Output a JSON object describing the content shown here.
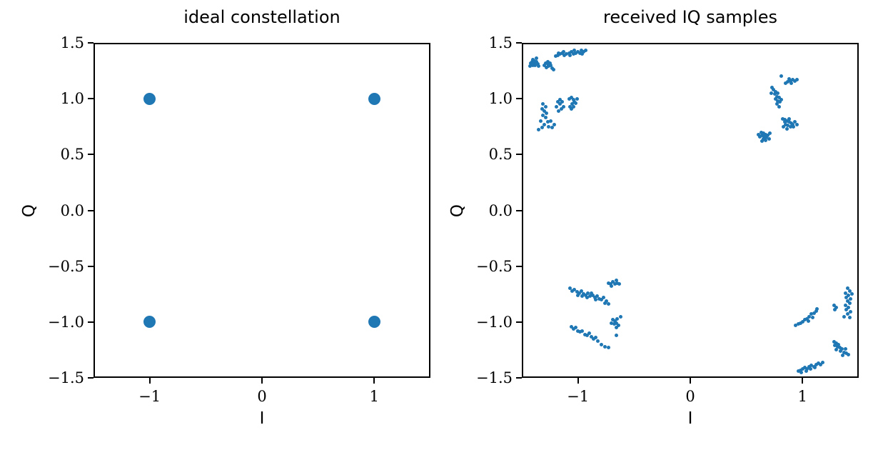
{
  "figure": {
    "background": "#ffffff",
    "axis_color": "#000000",
    "text_color": "#000000"
  },
  "chart_data": [
    {
      "type": "scatter",
      "title": "ideal constellation",
      "xlabel": "I",
      "ylabel": "Q",
      "xlim": [
        -1.5,
        1.5
      ],
      "ylim": [
        -1.5,
        1.5
      ],
      "xticks": [
        -1,
        0,
        1
      ],
      "xtick_labels": [
        "−1",
        "0",
        "1"
      ],
      "yticks": [
        1.5,
        1.0,
        0.5,
        0.0,
        -0.5,
        -1.0,
        -1.5
      ],
      "ytick_labels": [
        "1.5",
        "1.0",
        "0.5",
        "0.0",
        "−0.5",
        "−1.0",
        "−1.5"
      ],
      "grid": false,
      "legend": "none",
      "marker_color": "#1f77b4",
      "marker_px": 17,
      "points": [
        [
          -1,
          1
        ],
        [
          1,
          1
        ],
        [
          -1,
          -1
        ],
        [
          1,
          -1
        ]
      ]
    },
    {
      "type": "scatter",
      "title": "received IQ samples",
      "xlabel": "I",
      "ylabel": "Q",
      "xlim": [
        -1.5,
        1.5
      ],
      "ylim": [
        -1.5,
        1.5
      ],
      "xticks": [
        -1,
        0,
        1
      ],
      "xtick_labels": [
        "−1",
        "0",
        "1"
      ],
      "yticks": [
        1.5,
        1.0,
        0.5,
        0.0,
        -0.5,
        -1.0,
        -1.5
      ],
      "ytick_labels": [
        "1.5",
        "1.0",
        "0.5",
        "0.0",
        "−0.5",
        "−1.0",
        "−1.5"
      ],
      "grid": false,
      "legend": "none",
      "marker_color": "#1f77b4",
      "marker_px": 5,
      "points": [
        [
          -1.39,
          1.32
        ],
        [
          -1.37,
          1.33
        ],
        [
          -1.41,
          1.33
        ],
        [
          -1.38,
          1.3
        ],
        [
          -1.4,
          1.3
        ],
        [
          -1.36,
          1.31
        ],
        [
          -1.42,
          1.32
        ],
        [
          -1.39,
          1.34
        ],
        [
          -1.37,
          1.36
        ],
        [
          -1.43,
          1.29
        ],
        [
          -1.35,
          1.29
        ],
        [
          -1.4,
          1.35
        ],
        [
          -1.27,
          1.31
        ],
        [
          -1.25,
          1.32
        ],
        [
          -1.29,
          1.32
        ],
        [
          -1.26,
          1.29
        ],
        [
          -1.28,
          1.28
        ],
        [
          -1.24,
          1.3
        ],
        [
          -1.3,
          1.3
        ],
        [
          -1.27,
          1.33
        ],
        [
          -1.23,
          1.27
        ],
        [
          -1.22,
          1.26
        ],
        [
          -1.2,
          1.38
        ],
        [
          -1.18,
          1.39
        ],
        [
          -1.16,
          1.4
        ],
        [
          -1.14,
          1.41
        ],
        [
          -1.12,
          1.39
        ],
        [
          -1.1,
          1.4
        ],
        [
          -1.08,
          1.41
        ],
        [
          -1.06,
          1.42
        ],
        [
          -1.04,
          1.4
        ],
        [
          -1.02,
          1.41
        ],
        [
          -1.0,
          1.42
        ],
        [
          -0.98,
          1.41
        ],
        [
          -0.97,
          1.43
        ],
        [
          -0.96,
          1.4
        ],
        [
          -0.95,
          1.42
        ],
        [
          -1.03,
          1.43
        ],
        [
          -1.07,
          1.39
        ],
        [
          -1.13,
          1.42
        ],
        [
          -1.17,
          1.41
        ],
        [
          -0.93,
          1.43
        ],
        [
          -1.31,
          0.95
        ],
        [
          -1.29,
          0.93
        ],
        [
          -1.32,
          0.91
        ],
        [
          -1.3,
          0.89
        ],
        [
          -1.28,
          0.87
        ],
        [
          -1.31,
          0.85
        ],
        [
          -1.29,
          0.83
        ],
        [
          -1.33,
          0.8
        ],
        [
          -1.27,
          0.79
        ],
        [
          -1.3,
          0.77
        ],
        [
          -1.26,
          0.75
        ],
        [
          -1.32,
          0.74
        ],
        [
          -1.18,
          0.97
        ],
        [
          -1.16,
          0.95
        ],
        [
          -1.19,
          0.93
        ],
        [
          -1.15,
          0.91
        ],
        [
          -1.17,
          0.89
        ],
        [
          -1.13,
          0.93
        ],
        [
          -1.14,
          0.97
        ],
        [
          -1.16,
          0.99
        ],
        [
          -1.08,
          1.0
        ],
        [
          -1.06,
          1.01
        ],
        [
          -1.04,
          0.99
        ],
        [
          -1.03,
          0.97
        ],
        [
          -1.05,
          0.95
        ],
        [
          -1.07,
          0.93
        ],
        [
          -1.06,
          0.91
        ],
        [
          -1.04,
          0.93
        ],
        [
          -1.02,
          0.96
        ],
        [
          -1.01,
          1.0
        ],
        [
          -1.24,
          0.8
        ],
        [
          -1.21,
          0.77
        ],
        [
          -1.35,
          0.72
        ],
        [
          -1.23,
          0.74
        ],
        [
          0.89,
          1.16
        ],
        [
          0.91,
          1.17
        ],
        [
          0.87,
          1.15
        ],
        [
          0.9,
          1.14
        ],
        [
          0.93,
          1.16
        ],
        [
          0.88,
          1.18
        ],
        [
          0.85,
          1.14
        ],
        [
          0.95,
          1.17
        ],
        [
          0.81,
          1.2
        ],
        [
          0.74,
          1.08
        ],
        [
          0.76,
          1.06
        ],
        [
          0.78,
          1.05
        ],
        [
          0.75,
          1.04
        ],
        [
          0.77,
          1.02
        ],
        [
          0.79,
          1.01
        ],
        [
          0.76,
          1.0
        ],
        [
          0.78,
          0.98
        ],
        [
          0.8,
          0.97
        ],
        [
          0.77,
          0.95
        ],
        [
          0.79,
          0.93
        ],
        [
          0.72,
          1.05
        ],
        [
          0.73,
          1.1
        ],
        [
          0.81,
          0.99
        ],
        [
          0.82,
          0.82
        ],
        [
          0.84,
          0.81
        ],
        [
          0.86,
          0.8
        ],
        [
          0.88,
          0.79
        ],
        [
          0.9,
          0.78
        ],
        [
          0.85,
          0.77
        ],
        [
          0.87,
          0.76
        ],
        [
          0.83,
          0.75
        ],
        [
          0.89,
          0.75
        ],
        [
          0.91,
          0.77
        ],
        [
          0.93,
          0.79
        ],
        [
          0.86,
          0.73
        ],
        [
          0.84,
          0.79
        ],
        [
          0.92,
          0.75
        ],
        [
          0.95,
          0.77
        ],
        [
          0.88,
          0.82
        ],
        [
          0.63,
          0.7
        ],
        [
          0.65,
          0.69
        ],
        [
          0.67,
          0.68
        ],
        [
          0.64,
          0.67
        ],
        [
          0.66,
          0.66
        ],
        [
          0.68,
          0.65
        ],
        [
          0.65,
          0.64
        ],
        [
          0.67,
          0.63
        ],
        [
          0.69,
          0.67
        ],
        [
          0.7,
          0.64
        ],
        [
          0.62,
          0.66
        ],
        [
          0.64,
          0.62
        ],
        [
          0.71,
          0.69
        ],
        [
          0.61,
          0.68
        ],
        [
          -1.07,
          -0.7
        ],
        [
          -1.05,
          -0.72
        ],
        [
          -1.03,
          -0.71
        ],
        [
          -1.01,
          -0.73
        ],
        [
          -0.99,
          -0.74
        ],
        [
          -0.97,
          -0.72
        ],
        [
          -0.95,
          -0.75
        ],
        [
          -0.93,
          -0.76
        ],
        [
          -0.91,
          -0.74
        ],
        [
          -0.89,
          -0.77
        ],
        [
          -0.87,
          -0.76
        ],
        [
          -0.85,
          -0.78
        ],
        [
          -0.83,
          -0.77
        ],
        [
          -0.81,
          -0.79
        ],
        [
          -0.79,
          -0.8
        ],
        [
          -0.77,
          -0.78
        ],
        [
          -0.75,
          -0.81
        ],
        [
          -0.88,
          -0.74
        ],
        [
          -0.92,
          -0.78
        ],
        [
          -0.84,
          -0.8
        ],
        [
          -0.96,
          -0.77
        ],
        [
          -1.0,
          -0.76
        ],
        [
          -0.73,
          -0.84
        ],
        [
          -0.76,
          -0.83
        ],
        [
          -0.73,
          -0.65
        ],
        [
          -0.71,
          -0.66
        ],
        [
          -0.69,
          -0.64
        ],
        [
          -0.67,
          -0.66
        ],
        [
          -0.65,
          -0.65
        ],
        [
          -0.7,
          -0.68
        ],
        [
          -0.63,
          -0.66
        ],
        [
          -0.66,
          -0.63
        ],
        [
          -1.06,
          -1.04
        ],
        [
          -1.04,
          -1.06
        ],
        [
          -1.02,
          -1.05
        ],
        [
          -1.0,
          -1.08
        ],
        [
          -0.98,
          -1.09
        ],
        [
          -0.96,
          -1.08
        ],
        [
          -0.94,
          -1.11
        ],
        [
          -0.92,
          -1.12
        ],
        [
          -0.9,
          -1.1
        ],
        [
          -0.88,
          -1.13
        ],
        [
          -0.86,
          -1.15
        ],
        [
          -0.84,
          -1.14
        ],
        [
          -0.82,
          -1.17
        ],
        [
          -0.79,
          -1.2
        ],
        [
          -0.76,
          -1.22
        ],
        [
          -0.73,
          -1.23
        ],
        [
          -0.69,
          -0.98
        ],
        [
          -0.67,
          -0.99
        ],
        [
          -0.66,
          -1.01
        ],
        [
          -0.68,
          -1.02
        ],
        [
          -0.65,
          -0.97
        ],
        [
          -0.64,
          -1.03
        ],
        [
          -0.7,
          -1.01
        ],
        [
          -0.66,
          -1.05
        ],
        [
          -0.66,
          -1.12
        ],
        [
          -0.62,
          -0.95
        ],
        [
          0.96,
          -1.02
        ],
        [
          0.98,
          -1.01
        ],
        [
          1.0,
          -1.0
        ],
        [
          1.02,
          -0.98
        ],
        [
          1.04,
          -0.97
        ],
        [
          1.06,
          -0.95
        ],
        [
          1.08,
          -0.93
        ],
        [
          1.1,
          -0.92
        ],
        [
          1.12,
          -0.9
        ],
        [
          1.05,
          -0.99
        ],
        [
          1.09,
          -0.96
        ],
        [
          1.13,
          -0.88
        ],
        [
          0.94,
          -1.03
        ],
        [
          1.4,
          -0.7
        ],
        [
          1.42,
          -0.72
        ],
        [
          1.38,
          -0.74
        ],
        [
          1.41,
          -0.76
        ],
        [
          1.39,
          -0.78
        ],
        [
          1.43,
          -0.79
        ],
        [
          1.4,
          -0.81
        ],
        [
          1.42,
          -0.83
        ],
        [
          1.38,
          -0.85
        ],
        [
          1.41,
          -0.87
        ],
        [
          1.39,
          -0.89
        ],
        [
          1.43,
          -0.91
        ],
        [
          1.4,
          -0.93
        ],
        [
          1.37,
          -0.95
        ],
        [
          1.42,
          -0.96
        ],
        [
          1.44,
          -0.75
        ],
        [
          1.28,
          -0.85
        ],
        [
          1.3,
          -0.87
        ],
        [
          1.29,
          -0.89
        ],
        [
          1.28,
          -1.18
        ],
        [
          1.3,
          -1.19
        ],
        [
          1.32,
          -1.2
        ],
        [
          1.29,
          -1.21
        ],
        [
          1.31,
          -1.22
        ],
        [
          1.33,
          -1.23
        ],
        [
          1.35,
          -1.24
        ],
        [
          1.3,
          -1.25
        ],
        [
          1.34,
          -1.26
        ],
        [
          1.37,
          -1.27
        ],
        [
          1.39,
          -1.28
        ],
        [
          1.36,
          -1.3
        ],
        [
          1.41,
          -1.29
        ],
        [
          1.38,
          -1.24
        ],
        [
          0.96,
          -1.44
        ],
        [
          0.98,
          -1.43
        ],
        [
          1.0,
          -1.42
        ],
        [
          1.02,
          -1.41
        ],
        [
          1.04,
          -1.42
        ],
        [
          1.06,
          -1.4
        ],
        [
          1.08,
          -1.39
        ],
        [
          1.1,
          -1.4
        ],
        [
          1.12,
          -1.38
        ],
        [
          1.14,
          -1.37
        ],
        [
          1.16,
          -1.38
        ],
        [
          1.18,
          -1.36
        ],
        [
          1.03,
          -1.44
        ],
        [
          1.07,
          -1.42
        ],
        [
          1.11,
          -1.41
        ],
        [
          0.99,
          -1.45
        ]
      ]
    }
  ]
}
